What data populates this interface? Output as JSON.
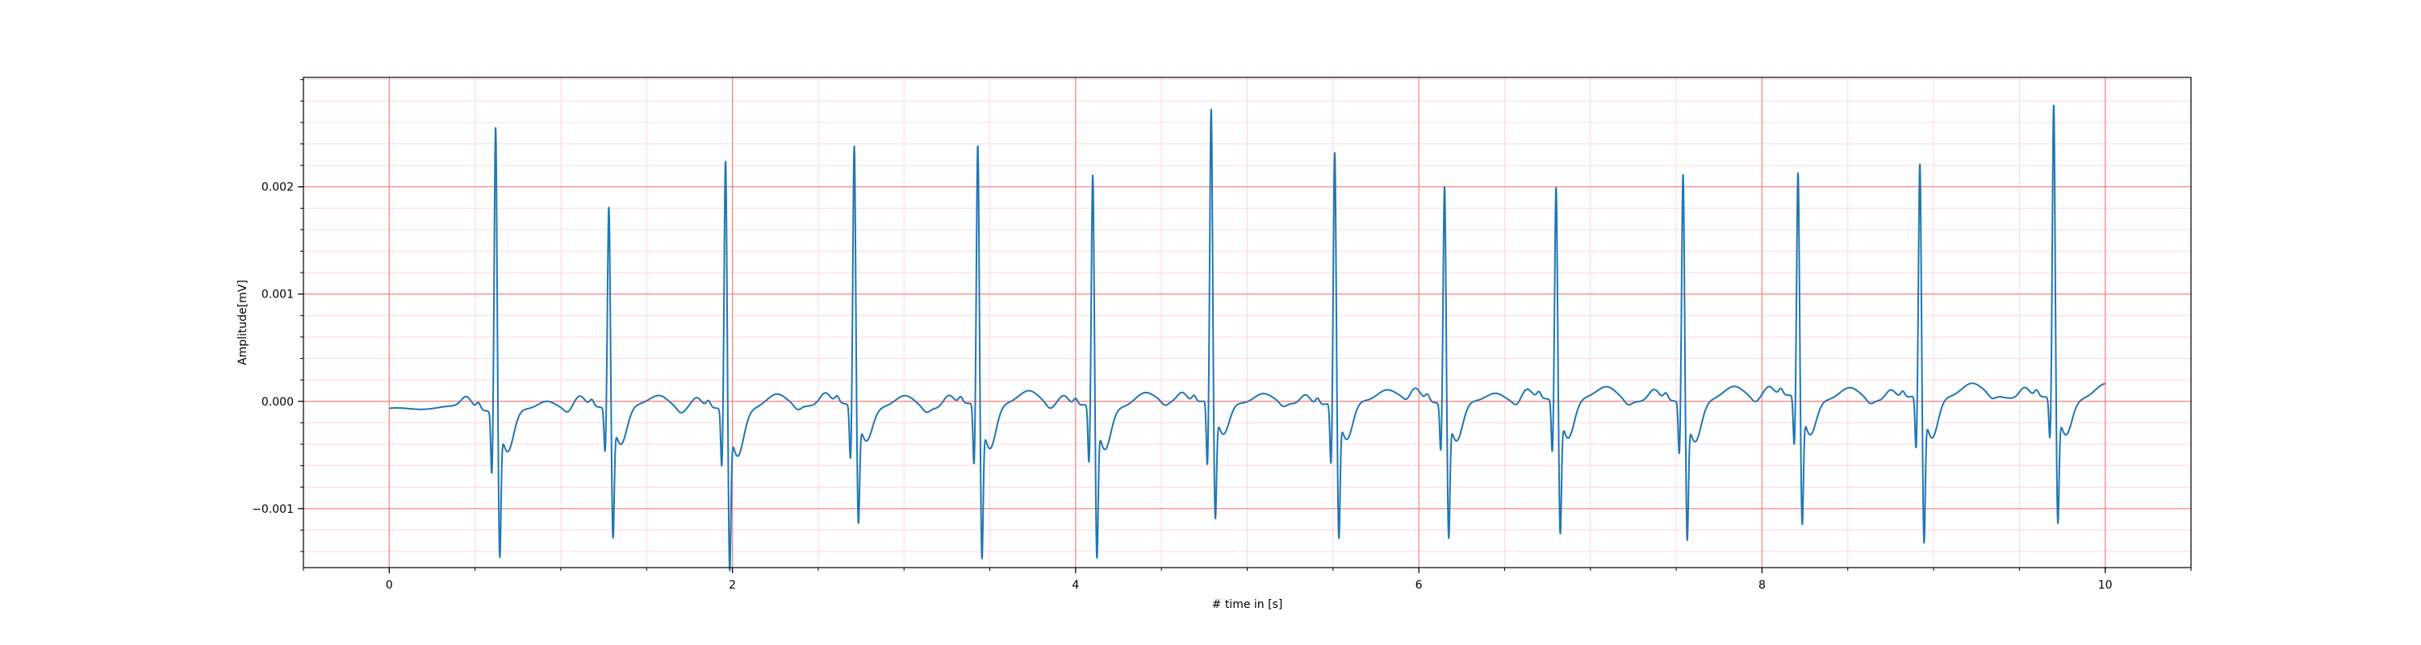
{
  "chart_data": {
    "type": "line",
    "title": "",
    "xlabel": "# time in [s]",
    "ylabel": "Amplitude[mV]",
    "xlim": [
      -0.5,
      10.5
    ],
    "ylim": [
      -0.00155,
      0.00302
    ],
    "x_major_ticks": [
      0,
      2,
      4,
      6,
      8,
      10
    ],
    "x_tick_labels": [
      "0",
      "2",
      "4",
      "6",
      "8",
      "10"
    ],
    "y_major_ticks": [
      -0.001,
      0.0,
      0.001,
      0.002
    ],
    "y_tick_labels": [
      "−0.001",
      "0.000",
      "0.001",
      "0.002"
    ],
    "x_minor_step": 0.5,
    "y_minor_step": 0.0002,
    "grid": {
      "major": true,
      "minor": true,
      "major_color": "#ff8080",
      "minor_color": "#ffd6e0"
    },
    "line_color": "#1f77b4",
    "series": [
      {
        "beats": [
          {
            "t": 0.62,
            "r": 0.0027,
            "q": -0.0006,
            "s": -0.00122
          },
          {
            "t": 1.28,
            "r": 0.00192,
            "q": -0.00042,
            "s": -0.00108
          },
          {
            "t": 1.96,
            "r": 0.00238,
            "q": -0.00055,
            "s": -0.00133
          },
          {
            "t": 2.71,
            "r": 0.00247,
            "q": -0.00052,
            "s": -0.00097
          },
          {
            "t": 3.43,
            "r": 0.00247,
            "q": -0.00058,
            "s": -0.00128
          },
          {
            "t": 4.1,
            "r": 0.0022,
            "q": -0.00055,
            "s": -0.00127
          },
          {
            "t": 4.79,
            "r": 0.00276,
            "q": -0.00062,
            "s": -0.00099
          },
          {
            "t": 5.51,
            "r": 0.00238,
            "q": -0.00058,
            "s": -0.00114
          },
          {
            "t": 6.15,
            "r": 0.00207,
            "q": -0.00045,
            "s": -0.00112
          },
          {
            "t": 6.8,
            "r": 0.00203,
            "q": -0.0005,
            "s": -0.00111
          },
          {
            "t": 7.54,
            "r": 0.00218,
            "q": -0.0005,
            "s": -0.00114
          },
          {
            "t": 8.21,
            "r": 0.00213,
            "q": -0.00047,
            "s": -0.00106
          },
          {
            "t": 8.92,
            "r": 0.00222,
            "q": -0.0005,
            "s": -0.00122
          },
          {
            "t": 9.7,
            "r": 0.00278,
            "q": -0.0004,
            "s": -0.00104
          }
        ],
        "t_start": 0.0,
        "t_end": 10.0,
        "baseline_start": -8e-05,
        "baseline_end": 5e-05
      }
    ]
  }
}
